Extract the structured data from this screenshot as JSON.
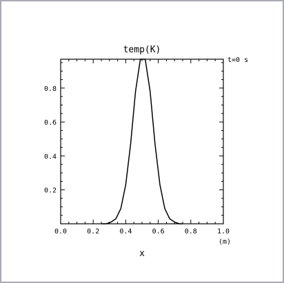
{
  "chart_data": {
    "type": "line",
    "title": "temp(K)",
    "time_label": "t=0 s",
    "xlabel": "x",
    "xunit": "(m)",
    "xlim": [
      0.0,
      1.0
    ],
    "ylim": [
      0.0,
      0.97
    ],
    "xticks": [
      0.0,
      0.2,
      0.4,
      0.6,
      0.8,
      1.0
    ],
    "xtick_labels": [
      "0.0",
      "0.2",
      "0.4",
      "0.6",
      "0.8",
      "1.0"
    ],
    "yticks": [
      0.2,
      0.4,
      0.6,
      0.8
    ],
    "ytick_labels": [
      "0.2",
      "0.4",
      "0.6",
      "0.8"
    ],
    "grid": false,
    "series": [
      {
        "x": [
          0.25,
          0.28,
          0.31,
          0.34,
          0.37,
          0.4,
          0.43,
          0.46,
          0.49,
          0.52,
          0.55,
          0.58,
          0.61,
          0.64,
          0.67,
          0.7,
          0.73,
          0.75
        ],
        "y": [
          0.0,
          0.0,
          0.01,
          0.03,
          0.09,
          0.23,
          0.47,
          0.78,
          0.97,
          0.97,
          0.78,
          0.47,
          0.23,
          0.09,
          0.03,
          0.01,
          0.0,
          0.0
        ]
      }
    ]
  }
}
